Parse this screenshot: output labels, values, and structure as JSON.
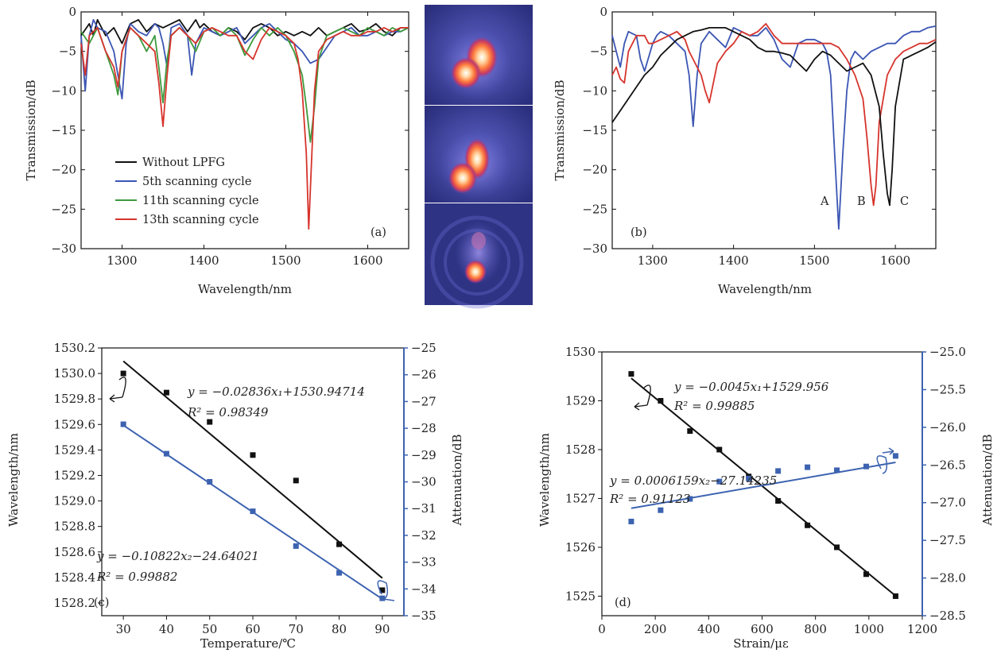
{
  "colors": {
    "black": "#111111",
    "blue": "#3b55b3",
    "green": "#3d9a3d",
    "red": "#d6342c",
    "pt_blue": "#3d63b0"
  },
  "chart_data": [
    {
      "type": "line",
      "panel_label": "(a)",
      "xlabel": "Wavelength/nm",
      "ylabel": "Transmission/dB",
      "xlim": [
        1250,
        1650
      ],
      "ylim": [
        -30,
        0
      ],
      "xticks": [
        1300,
        1400,
        1500,
        1600
      ],
      "yticks": [
        0,
        -5,
        -10,
        -15,
        -20,
        -25,
        -30
      ],
      "xtick_labels": [
        "1300",
        "1400",
        "1500",
        "1600"
      ],
      "ytick_labels": [
        "0",
        "−5",
        "−10",
        "−15",
        "−20",
        "−25",
        "−30"
      ],
      "legend_position": "lower-left",
      "series": [
        {
          "name": "Without LPFG",
          "color": "black",
          "x": [
            1250,
            1260,
            1265,
            1270,
            1280,
            1290,
            1300,
            1310,
            1320,
            1330,
            1340,
            1350,
            1360,
            1370,
            1380,
            1390,
            1395,
            1400,
            1410,
            1420,
            1430,
            1440,
            1450,
            1460,
            1470,
            1480,
            1490,
            1500,
            1510,
            1520,
            1530,
            1540,
            1550,
            1560,
            1570,
            1580,
            1590,
            1600,
            1610,
            1620,
            1630,
            1640,
            1650
          ],
          "y": [
            -3,
            -1.5,
            -3,
            -1,
            -3,
            -2,
            -4,
            -1.5,
            -1,
            -2.5,
            -1.5,
            -2,
            -1.5,
            -1,
            -2.5,
            -1,
            -2,
            -1.5,
            -2.5,
            -3,
            -2,
            -2.5,
            -3.5,
            -2,
            -1.5,
            -2,
            -3,
            -2.5,
            -3,
            -2.5,
            -3,
            -2,
            -3,
            -2.5,
            -2,
            -1.5,
            -2.5,
            -2.2,
            -1.5,
            -2.5,
            -3,
            -2,
            -2
          ]
        },
        {
          "name": "5th scanning cycle",
          "color": "blue",
          "x": [
            1250,
            1255,
            1260,
            1265,
            1270,
            1280,
            1290,
            1295,
            1300,
            1305,
            1310,
            1320,
            1330,
            1340,
            1345,
            1350,
            1355,
            1360,
            1370,
            1380,
            1385,
            1390,
            1400,
            1410,
            1420,
            1440,
            1450,
            1460,
            1470,
            1480,
            1490,
            1500,
            1510,
            1520,
            1530,
            1540,
            1550,
            1560,
            1570,
            1580,
            1590,
            1600,
            1610,
            1620,
            1630,
            1640,
            1650
          ],
          "y": [
            -3,
            -10,
            -3,
            -1,
            -2,
            -2.5,
            -5,
            -8,
            -11,
            -4,
            -1.5,
            -2.5,
            -3,
            -1.5,
            -2,
            -4,
            -7,
            -2,
            -1.5,
            -3,
            -8,
            -4,
            -2,
            -2.5,
            -3,
            -2,
            -4,
            -3,
            -2,
            -1.5,
            -2.5,
            -3.5,
            -4,
            -5,
            -6.5,
            -6,
            -4.5,
            -3,
            -2.5,
            -2,
            -3,
            -3,
            -2.5,
            -3,
            -2.5,
            -2.5,
            -2
          ]
        },
        {
          "name": "11th scanning cycle",
          "color": "green",
          "x": [
            1250,
            1260,
            1270,
            1280,
            1290,
            1295,
            1300,
            1310,
            1320,
            1330,
            1340,
            1345,
            1350,
            1355,
            1360,
            1370,
            1380,
            1390,
            1400,
            1410,
            1420,
            1430,
            1440,
            1450,
            1460,
            1470,
            1480,
            1490,
            1500,
            1510,
            1520,
            1525,
            1530,
            1535,
            1540,
            1550,
            1560,
            1570,
            1580,
            1590,
            1600,
            1610,
            1620,
            1630,
            1640,
            1650
          ],
          "y": [
            -2.5,
            -4,
            -2,
            -5,
            -8,
            -10.5,
            -5,
            -2,
            -3,
            -5,
            -3,
            -7,
            -11.5,
            -6,
            -3,
            -2,
            -3,
            -5,
            -2.5,
            -2,
            -3,
            -2,
            -3,
            -5.5,
            -3.5,
            -2,
            -3,
            -2,
            -3,
            -5,
            -8,
            -12,
            -16.5,
            -12,
            -6,
            -3,
            -2.5,
            -2,
            -2.5,
            -3,
            -2,
            -2.5,
            -3,
            -2,
            -2.5,
            -2
          ]
        },
        {
          "name": "13th scanning cycle",
          "color": "red",
          "x": [
            1250,
            1255,
            1260,
            1270,
            1280,
            1290,
            1295,
            1300,
            1310,
            1320,
            1330,
            1340,
            1345,
            1350,
            1355,
            1360,
            1370,
            1380,
            1390,
            1400,
            1410,
            1420,
            1430,
            1440,
            1450,
            1460,
            1470,
            1480,
            1490,
            1500,
            1510,
            1515,
            1520,
            1525,
            1528,
            1531,
            1535,
            1540,
            1550,
            1560,
            1570,
            1580,
            1590,
            1600,
            1610,
            1620,
            1630,
            1640,
            1650
          ],
          "y": [
            -4,
            -8,
            -3,
            -2,
            -5,
            -7,
            -9.5,
            -5,
            -2,
            -3,
            -4,
            -5,
            -9,
            -14.5,
            -8,
            -3,
            -2,
            -3,
            -4,
            -2.5,
            -2,
            -2.5,
            -3,
            -3,
            -5,
            -6,
            -3.5,
            -2,
            -2.5,
            -3,
            -4,
            -6,
            -10,
            -18,
            -27.5,
            -20,
            -10,
            -5,
            -3.5,
            -3,
            -2.5,
            -3,
            -3,
            -2.5,
            -2.5,
            -2,
            -2.5,
            -2,
            -2
          ]
        }
      ]
    },
    {
      "type": "line",
      "panel_label": "(b)",
      "xlabel": "Wavelength/nm",
      "ylabel": "Transmission/dB",
      "xlim": [
        1250,
        1650
      ],
      "ylim": [
        -30,
        0
      ],
      "xticks": [
        1300,
        1400,
        1500,
        1600
      ],
      "yticks": [
        0,
        -5,
        -10,
        -15,
        -20,
        -25,
        -30
      ],
      "xtick_labels": [
        "1300",
        "1400",
        "1500",
        "1600"
      ],
      "ytick_labels": [
        "0",
        "−5",
        "−10",
        "−15",
        "−20",
        "−25",
        "−30"
      ],
      "annotations": [
        {
          "text": "A",
          "x": 1512,
          "y": -23.8
        },
        {
          "text": "B",
          "x": 1556,
          "y": -23.8
        },
        {
          "text": "C",
          "x": 1605,
          "y": -23.8
        }
      ],
      "series": [
        {
          "color": "blue",
          "x": [
            1250,
            1255,
            1260,
            1265,
            1270,
            1280,
            1285,
            1290,
            1300,
            1305,
            1310,
            1320,
            1330,
            1340,
            1345,
            1350,
            1355,
            1360,
            1370,
            1380,
            1390,
            1400,
            1410,
            1420,
            1430,
            1440,
            1450,
            1460,
            1470,
            1480,
            1490,
            1500,
            1510,
            1515,
            1520,
            1525,
            1530,
            1535,
            1540,
            1545,
            1550,
            1560,
            1570,
            1580,
            1590,
            1600,
            1610,
            1620,
            1630,
            1640,
            1650
          ],
          "y": [
            -3,
            -5,
            -7,
            -4,
            -2.5,
            -3,
            -6,
            -7.5,
            -4,
            -3,
            -2.5,
            -3,
            -4,
            -5,
            -8,
            -14.5,
            -8,
            -4,
            -2.5,
            -3.5,
            -4.5,
            -2,
            -2.5,
            -3,
            -3,
            -2,
            -3.5,
            -6,
            -7,
            -4,
            -3.5,
            -3.5,
            -4,
            -5,
            -8,
            -18,
            -27.5,
            -18,
            -10,
            -6,
            -5,
            -6,
            -5,
            -4.5,
            -4,
            -4,
            -3,
            -2.5,
            -2.5,
            -2,
            -1.8
          ]
        },
        {
          "color": "red",
          "x": [
            1250,
            1255,
            1260,
            1265,
            1270,
            1280,
            1290,
            1295,
            1300,
            1310,
            1320,
            1330,
            1340,
            1345,
            1350,
            1360,
            1365,
            1370,
            1375,
            1380,
            1390,
            1400,
            1410,
            1420,
            1430,
            1440,
            1450,
            1460,
            1470,
            1480,
            1490,
            1500,
            1510,
            1520,
            1530,
            1540,
            1550,
            1560,
            1565,
            1570,
            1573,
            1576,
            1580,
            1590,
            1600,
            1610,
            1620,
            1630,
            1640,
            1650
          ],
          "y": [
            -8,
            -7,
            -8.5,
            -9,
            -5,
            -3,
            -3,
            -4,
            -4,
            -3.5,
            -3,
            -2.5,
            -3.5,
            -5,
            -6,
            -8,
            -10,
            -11.5,
            -9,
            -6.5,
            -5,
            -4,
            -2.5,
            -3,
            -2.5,
            -1.5,
            -3,
            -4,
            -4,
            -4,
            -4,
            -4,
            -4,
            -4,
            -4.5,
            -6,
            -8,
            -11,
            -16,
            -22,
            -24.5,
            -22,
            -14,
            -8,
            -6,
            -5,
            -4.5,
            -4,
            -4,
            -3.5
          ]
        },
        {
          "color": "black",
          "x": [
            1250,
            1260,
            1270,
            1280,
            1290,
            1300,
            1310,
            1320,
            1330,
            1340,
            1350,
            1360,
            1370,
            1380,
            1390,
            1400,
            1410,
            1420,
            1430,
            1440,
            1450,
            1460,
            1470,
            1480,
            1490,
            1500,
            1510,
            1520,
            1530,
            1540,
            1550,
            1560,
            1570,
            1580,
            1585,
            1590,
            1593,
            1596,
            1600,
            1610,
            1620,
            1630,
            1640,
            1650
          ],
          "y": [
            -14,
            -12.5,
            -11,
            -9.5,
            -8,
            -7,
            -5.5,
            -4.5,
            -3.5,
            -3,
            -2.5,
            -2.3,
            -2,
            -2,
            -2,
            -2.5,
            -3,
            -3.5,
            -4.5,
            -5,
            -5,
            -5.2,
            -5.5,
            -6.5,
            -7.5,
            -6,
            -5,
            -5.5,
            -6.5,
            -7.5,
            -7,
            -6.5,
            -8,
            -12,
            -18,
            -23,
            -24.5,
            -20,
            -12,
            -6,
            -5.5,
            -5,
            -4.5,
            -3.8
          ]
        }
      ]
    },
    {
      "type": "scatter",
      "panel_label": "(c)",
      "xlabel": "Temperature/℃",
      "ylabel": "Wavelength/nm",
      "ylabel_right": "Attenuation/dB",
      "xlim": [
        25,
        95
      ],
      "ylim": [
        1528.1,
        1530.2
      ],
      "ylim_right": [
        -35,
        -25
      ],
      "xticks": [
        30,
        40,
        50,
        60,
        70,
        80,
        90
      ],
      "xtick_labels": [
        "30",
        "40",
        "50",
        "60",
        "70",
        "80",
        "90"
      ],
      "yticks": [
        1528.2,
        1528.4,
        1528.6,
        1528.8,
        1529.0,
        1529.2,
        1529.4,
        1529.6,
        1529.8,
        1530.0,
        1530.2
      ],
      "ytick_labels": [
        "1528.2",
        "1528.4",
        "1528.6",
        "1528.8",
        "1529.0",
        "1529.2",
        "1529.4",
        "1529.6",
        "1529.8",
        "1530.0",
        "1530.2"
      ],
      "yticks_right": [
        -25,
        -26,
        -27,
        -28,
        -29,
        -30,
        -31,
        -32,
        -33,
        -34,
        -35
      ],
      "ytick_labels_right": [
        "−25",
        "−26",
        "−27",
        "−28",
        "−29",
        "−30",
        "−31",
        "−32",
        "−33",
        "−34",
        "−35"
      ],
      "eq1": "y = −0.02836x₁+1530.94714",
      "r2_1": "R² = 0.98349",
      "eq2": "y = −0.10822x₂−24.64021",
      "r2_2": "R² = 0.99882",
      "series": [
        {
          "axis": "left",
          "color": "black",
          "x": [
            30,
            40,
            50,
            60,
            70,
            80,
            90
          ],
          "y": [
            1530.0,
            1529.85,
            1529.62,
            1529.36,
            1529.16,
            1528.66,
            1528.3
          ],
          "fit": {
            "slope": -0.02836,
            "intercept": 1530.94714
          }
        },
        {
          "axis": "right",
          "color": "blue",
          "x": [
            30,
            40,
            50,
            60,
            70,
            80,
            90
          ],
          "y": [
            -27.85,
            -28.95,
            -30,
            -31.1,
            -32.4,
            -33.4,
            -34.35
          ],
          "fit": {
            "slope": -0.10822,
            "intercept": -24.64021
          }
        }
      ]
    },
    {
      "type": "scatter",
      "panel_label": "(d)",
      "xlabel": "Strain/με",
      "ylabel": "Wavelength/nm",
      "ylabel_right": "Attenuation/dB",
      "xlim": [
        0,
        1200
      ],
      "ylim": [
        1524.6,
        1530
      ],
      "ylim_right": [
        -28.5,
        -25
      ],
      "xticks": [
        0,
        200,
        400,
        600,
        800,
        1000,
        1200
      ],
      "xtick_labels": [
        "0",
        "200",
        "400",
        "600",
        "800",
        "1000",
        "1200"
      ],
      "yticks": [
        1525,
        1526,
        1527,
        1528,
        1529,
        1530
      ],
      "ytick_labels": [
        "1525",
        "1526",
        "1527",
        "1528",
        "1529",
        "1530"
      ],
      "yticks_right": [
        -25.0,
        -25.5,
        -26.0,
        -26.5,
        -27.0,
        -27.5,
        -28.0,
        -28.5
      ],
      "ytick_labels_right": [
        "−25.0",
        "−25.5",
        "−26.0",
        "−26.5",
        "−27.0",
        "−27.5",
        "−28.0",
        "−28.5"
      ],
      "eq1": "y = −0.0045x₁+1529.956",
      "r2_1": "R² = 0.99885",
      "eq2": "y = 0.0006159x₂−27.14235",
      "r2_2": "R² = 0.91123",
      "series": [
        {
          "axis": "left",
          "color": "black",
          "x": [
            110,
            220,
            330,
            440,
            550,
            660,
            770,
            880,
            990,
            1100
          ],
          "y": [
            1529.55,
            1529.0,
            1528.38,
            1528.0,
            1527.45,
            1526.95,
            1526.45,
            1526.0,
            1525.45,
            1525.0
          ],
          "fit": {
            "slope": -0.0045,
            "intercept": 1529.956
          }
        },
        {
          "axis": "right",
          "color": "blue",
          "x": [
            110,
            220,
            330,
            440,
            550,
            660,
            770,
            880,
            990,
            1100
          ],
          "y": [
            -27.25,
            -27.1,
            -26.95,
            -26.72,
            -26.68,
            -26.58,
            -26.53,
            -26.57,
            -26.52,
            -26.38
          ],
          "fit": {
            "slope": 0.0006159,
            "intercept": -27.14235
          }
        }
      ]
    }
  ]
}
